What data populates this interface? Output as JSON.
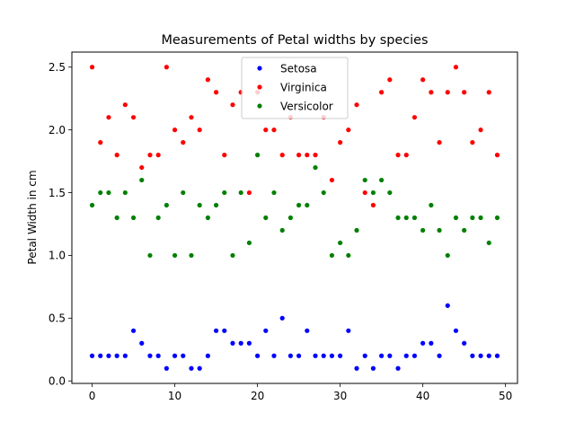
{
  "chart_data": {
    "type": "scatter",
    "title": "Measurements of Petal widths by species",
    "xlabel": "",
    "ylabel": "Petal Width in cm",
    "xlim": [
      -2.45,
      51.45
    ],
    "ylim": [
      -0.02,
      2.62
    ],
    "xticks": [
      0,
      10,
      20,
      30,
      40,
      50
    ],
    "xtick_labels": [
      "0",
      "10",
      "20",
      "30",
      "40",
      "50"
    ],
    "yticks": [
      0.0,
      0.5,
      1.0,
      1.5,
      2.0,
      2.5
    ],
    "ytick_labels": [
      "0.0",
      "0.5",
      "1.0",
      "1.5",
      "2.0",
      "2.5"
    ],
    "grid": false,
    "legend_position": "upper center",
    "series": [
      {
        "name": "Setosa",
        "color": "#0000ff",
        "values": [
          0.2,
          0.2,
          0.2,
          0.2,
          0.2,
          0.4,
          0.3,
          0.2,
          0.2,
          0.1,
          0.2,
          0.2,
          0.1,
          0.1,
          0.2,
          0.4,
          0.4,
          0.3,
          0.3,
          0.3,
          0.2,
          0.4,
          0.2,
          0.5,
          0.2,
          0.2,
          0.4,
          0.2,
          0.2,
          0.2,
          0.2,
          0.4,
          0.1,
          0.2,
          0.1,
          0.2,
          0.2,
          0.1,
          0.2,
          0.2,
          0.3,
          0.3,
          0.2,
          0.6,
          0.4,
          0.3,
          0.2,
          0.2,
          0.2,
          0.2
        ]
      },
      {
        "name": "Virginica",
        "color": "#ff0000",
        "values": [
          2.5,
          1.9,
          2.1,
          1.8,
          2.2,
          2.1,
          1.7,
          1.8,
          1.8,
          2.5,
          2.0,
          1.9,
          2.1,
          2.0,
          2.4,
          2.3,
          1.8,
          2.2,
          2.3,
          1.5,
          2.3,
          2.0,
          2.0,
          1.8,
          2.1,
          1.8,
          1.8,
          1.8,
          2.1,
          1.6,
          1.9,
          2.0,
          2.2,
          1.5,
          1.4,
          2.3,
          2.4,
          1.8,
          1.8,
          2.1,
          2.4,
          2.3,
          1.9,
          2.3,
          2.5,
          2.3,
          1.9,
          2.0,
          2.3,
          1.8
        ]
      },
      {
        "name": "Versicolor",
        "color": "#008000",
        "values": [
          1.4,
          1.5,
          1.5,
          1.3,
          1.5,
          1.3,
          1.6,
          1.0,
          1.3,
          1.4,
          1.0,
          1.5,
          1.0,
          1.4,
          1.3,
          1.4,
          1.5,
          1.0,
          1.5,
          1.1,
          1.8,
          1.3,
          1.5,
          1.2,
          1.3,
          1.4,
          1.4,
          1.7,
          1.5,
          1.0,
          1.1,
          1.0,
          1.2,
          1.6,
          1.5,
          1.6,
          1.5,
          1.3,
          1.3,
          1.3,
          1.2,
          1.4,
          1.2,
          1.0,
          1.3,
          1.2,
          1.3,
          1.3,
          1.1,
          1.3
        ]
      }
    ]
  }
}
